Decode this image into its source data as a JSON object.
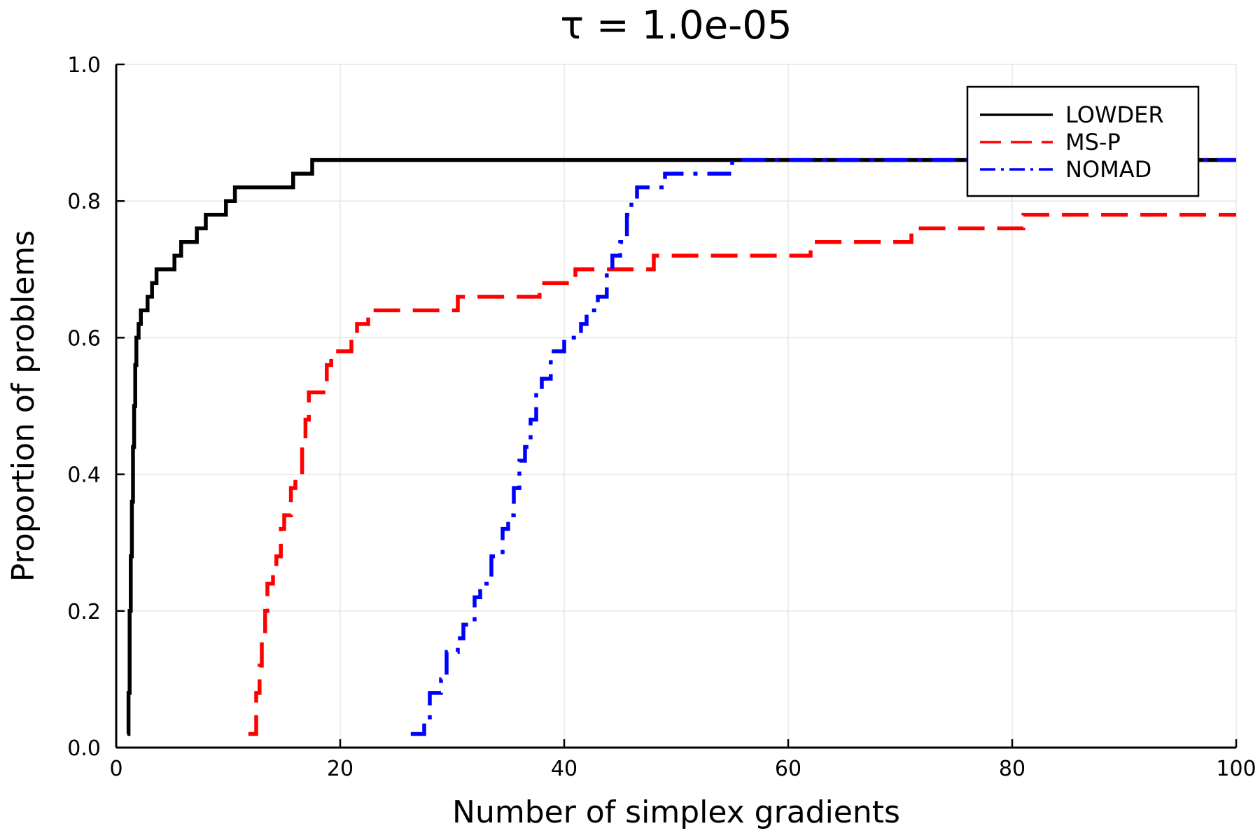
{
  "chart_data": {
    "type": "line",
    "step": true,
    "title": "τ = 1.0e-05",
    "xlabel": "Number of simplex gradients",
    "ylabel": "Proportion of problems",
    "xlim": [
      0,
      100
    ],
    "ylim": [
      0,
      1
    ],
    "xticks": [
      0,
      20,
      40,
      60,
      80,
      100
    ],
    "xtick_labels": [
      "0",
      "20",
      "40",
      "60",
      "80",
      "100"
    ],
    "yticks": [
      0,
      0.2,
      0.4,
      0.6,
      0.8,
      1.0
    ],
    "ytick_labels": [
      "0.0",
      "0.2",
      "0.4",
      "0.6",
      "0.8",
      "1.0"
    ],
    "grid": true,
    "legend_position": "top-right",
    "series": [
      {
        "name": "LOWDER",
        "color": "#000000",
        "dash": "solid",
        "points": [
          [
            1.0,
            0.02
          ],
          [
            1.1,
            0.08
          ],
          [
            1.2,
            0.2
          ],
          [
            1.3,
            0.28
          ],
          [
            1.4,
            0.36
          ],
          [
            1.5,
            0.44
          ],
          [
            1.6,
            0.5
          ],
          [
            1.7,
            0.56
          ],
          [
            1.8,
            0.6
          ],
          [
            2.0,
            0.62
          ],
          [
            2.2,
            0.64
          ],
          [
            2.8,
            0.66
          ],
          [
            3.2,
            0.68
          ],
          [
            3.6,
            0.7
          ],
          [
            5.2,
            0.72
          ],
          [
            5.8,
            0.74
          ],
          [
            7.2,
            0.76
          ],
          [
            8.0,
            0.78
          ],
          [
            9.8,
            0.8
          ],
          [
            10.6,
            0.82
          ],
          [
            15.8,
            0.84
          ],
          [
            17.5,
            0.86
          ],
          [
            100,
            0.86
          ]
        ]
      },
      {
        "name": "MS-P",
        "color": "#ff0000",
        "dash": "dashed",
        "points": [
          [
            11.8,
            0.02
          ],
          [
            12.5,
            0.08
          ],
          [
            12.8,
            0.12
          ],
          [
            13.0,
            0.16
          ],
          [
            13.3,
            0.2
          ],
          [
            13.5,
            0.24
          ],
          [
            14.0,
            0.26
          ],
          [
            14.3,
            0.28
          ],
          [
            14.7,
            0.32
          ],
          [
            15.0,
            0.34
          ],
          [
            15.6,
            0.38
          ],
          [
            16.0,
            0.4
          ],
          [
            16.6,
            0.44
          ],
          [
            16.9,
            0.48
          ],
          [
            17.2,
            0.52
          ],
          [
            18.8,
            0.56
          ],
          [
            19.2,
            0.58
          ],
          [
            21.0,
            0.6
          ],
          [
            21.5,
            0.62
          ],
          [
            22.5,
            0.64
          ],
          [
            30.5,
            0.66
          ],
          [
            37.8,
            0.68
          ],
          [
            41.0,
            0.7
          ],
          [
            48.0,
            0.72
          ],
          [
            62.0,
            0.74
          ],
          [
            71.0,
            0.76
          ],
          [
            81.0,
            0.78
          ],
          [
            100,
            0.78
          ]
        ]
      },
      {
        "name": "NOMAD",
        "color": "#0000ff",
        "dash": "dashdot",
        "points": [
          [
            26.3,
            0.02
          ],
          [
            27.5,
            0.04
          ],
          [
            28.0,
            0.08
          ],
          [
            29.0,
            0.1
          ],
          [
            29.5,
            0.14
          ],
          [
            30.5,
            0.16
          ],
          [
            31.0,
            0.18
          ],
          [
            32.0,
            0.22
          ],
          [
            32.5,
            0.24
          ],
          [
            33.5,
            0.28
          ],
          [
            34.5,
            0.32
          ],
          [
            35.0,
            0.34
          ],
          [
            35.5,
            0.38
          ],
          [
            36.0,
            0.42
          ],
          [
            36.5,
            0.44
          ],
          [
            37.0,
            0.48
          ],
          [
            37.5,
            0.52
          ],
          [
            38.0,
            0.54
          ],
          [
            38.8,
            0.58
          ],
          [
            40.0,
            0.6
          ],
          [
            41.5,
            0.62
          ],
          [
            42.0,
            0.64
          ],
          [
            43.0,
            0.66
          ],
          [
            43.8,
            0.7
          ],
          [
            44.3,
            0.72
          ],
          [
            45.0,
            0.74
          ],
          [
            45.6,
            0.78
          ],
          [
            46.0,
            0.8
          ],
          [
            46.5,
            0.82
          ],
          [
            49.0,
            0.84
          ],
          [
            55.0,
            0.86
          ],
          [
            100,
            0.86
          ]
        ]
      }
    ]
  }
}
